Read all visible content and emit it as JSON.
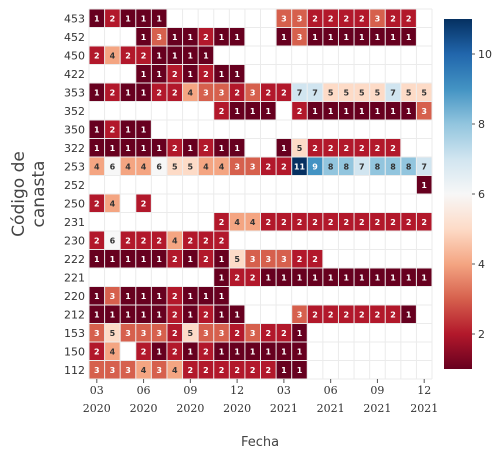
{
  "chart_data": {
    "type": "heatmap",
    "xlabel": "Fecha",
    "ylabel": "Código de canasta",
    "x": [
      "2020-03",
      "2020-04",
      "2020-05",
      "2020-06",
      "2020-07",
      "2020-08",
      "2020-09",
      "2020-10",
      "2020-11",
      "2020-12",
      "2021-01",
      "2021-02",
      "2021-03",
      "2021-04",
      "2021-05",
      "2021-06",
      "2021-07",
      "2021-08",
      "2021-09",
      "2021-10",
      "2021-11",
      "2021-12"
    ],
    "x_tick_labels": [
      {
        "x": "2020-03",
        "month": "03",
        "year": "2020"
      },
      {
        "x": "2020-06",
        "month": "06",
        "year": "2020"
      },
      {
        "x": "2020-09",
        "month": "09",
        "year": "2020"
      },
      {
        "x": "2020-12",
        "month": "12",
        "year": "2020"
      },
      {
        "x": "2021-03",
        "month": "03",
        "year": "2021"
      },
      {
        "x": "2021-06",
        "month": "06",
        "year": "2021"
      },
      {
        "x": "2021-09",
        "month": "09",
        "year": "2021"
      },
      {
        "x": "2021-12",
        "month": "12",
        "year": "2021"
      }
    ],
    "y": [
      "453",
      "452",
      "450",
      "422",
      "353",
      "352",
      "350",
      "322",
      "253",
      "252",
      "250",
      "231",
      "230",
      "222",
      "221",
      "220",
      "212",
      "153",
      "150",
      "112"
    ],
    "z": [
      [
        1,
        2,
        1,
        1,
        1,
        null,
        null,
        null,
        null,
        null,
        null,
        null,
        3,
        3,
        2,
        2,
        2,
        2,
        3,
        2,
        2,
        null
      ],
      [
        null,
        null,
        null,
        1,
        3,
        1,
        1,
        2,
        1,
        1,
        null,
        null,
        1,
        3,
        1,
        1,
        1,
        1,
        1,
        1,
        1,
        null
      ],
      [
        2,
        4,
        2,
        2,
        1,
        1,
        1,
        1,
        null,
        null,
        null,
        null,
        null,
        null,
        null,
        null,
        null,
        null,
        null,
        null,
        null,
        null
      ],
      [
        null,
        null,
        null,
        1,
        1,
        2,
        1,
        2,
        1,
        1,
        null,
        null,
        null,
        null,
        null,
        null,
        null,
        null,
        null,
        null,
        null,
        null
      ],
      [
        1,
        2,
        1,
        1,
        2,
        2,
        4,
        3,
        3,
        2,
        3,
        2,
        2,
        7,
        7,
        5,
        5,
        5,
        5,
        7,
        5,
        5
      ],
      [
        null,
        null,
        null,
        null,
        null,
        null,
        null,
        null,
        2,
        1,
        1,
        1,
        null,
        2,
        1,
        1,
        1,
        1,
        1,
        1,
        1,
        3
      ],
      [
        1,
        2,
        1,
        1,
        null,
        null,
        null,
        null,
        null,
        null,
        null,
        null,
        null,
        null,
        null,
        null,
        null,
        null,
        null,
        null,
        null,
        null
      ],
      [
        1,
        1,
        1,
        1,
        1,
        2,
        1,
        2,
        1,
        1,
        null,
        null,
        1,
        5,
        2,
        2,
        2,
        2,
        2,
        2,
        null,
        null
      ],
      [
        4,
        6,
        4,
        4,
        6,
        5,
        5,
        4,
        4,
        3,
        3,
        2,
        2,
        11,
        9,
        8,
        8,
        7,
        8,
        8,
        8,
        7
      ],
      [
        null,
        null,
        null,
        null,
        null,
        null,
        null,
        null,
        null,
        null,
        null,
        null,
        null,
        null,
        null,
        null,
        null,
        null,
        null,
        null,
        null,
        1
      ],
      [
        2,
        4,
        null,
        2,
        null,
        null,
        null,
        null,
        null,
        null,
        null,
        null,
        null,
        null,
        null,
        null,
        null,
        null,
        null,
        null,
        null,
        null
      ],
      [
        null,
        null,
        null,
        null,
        null,
        null,
        null,
        null,
        2,
        4,
        4,
        2,
        2,
        2,
        2,
        2,
        2,
        2,
        2,
        2,
        2,
        2
      ],
      [
        2,
        6,
        2,
        2,
        2,
        4,
        2,
        2,
        2,
        null,
        null,
        null,
        null,
        null,
        null,
        null,
        null,
        null,
        null,
        null,
        null,
        null
      ],
      [
        1,
        1,
        1,
        1,
        1,
        2,
        1,
        2,
        1,
        5,
        3,
        3,
        3,
        2,
        2,
        null,
        null,
        null,
        null,
        null,
        null,
        null
      ],
      [
        null,
        null,
        null,
        null,
        null,
        null,
        null,
        null,
        1,
        2,
        2,
        1,
        1,
        1,
        1,
        1,
        1,
        1,
        1,
        1,
        1,
        1
      ],
      [
        1,
        3,
        1,
        1,
        1,
        2,
        1,
        1,
        1,
        null,
        null,
        null,
        null,
        null,
        null,
        null,
        null,
        null,
        null,
        null,
        null,
        null
      ],
      [
        1,
        1,
        1,
        1,
        1,
        2,
        1,
        2,
        1,
        1,
        null,
        null,
        null,
        3,
        2,
        2,
        2,
        2,
        2,
        2,
        1,
        null
      ],
      [
        3,
        5,
        3,
        3,
        3,
        2,
        5,
        3,
        3,
        2,
        3,
        2,
        2,
        1,
        null,
        null,
        null,
        null,
        null,
        null,
        null,
        null
      ],
      [
        2,
        4,
        null,
        2,
        1,
        2,
        1,
        2,
        1,
        1,
        1,
        1,
        1,
        1,
        null,
        null,
        null,
        null,
        null,
        null,
        null,
        null
      ],
      [
        3,
        3,
        3,
        4,
        3,
        4,
        2,
        2,
        2,
        2,
        2,
        2,
        1,
        1,
        null,
        null,
        null,
        null,
        null,
        null,
        null,
        null
      ]
    ],
    "colorscale": [
      "#67001f",
      "#b2182b",
      "#d6604d",
      "#f4a582",
      "#fddbc7",
      "#f7f7f7",
      "#d1e5f0",
      "#92c5de",
      "#4393c3",
      "#2166ac",
      "#053061"
    ],
    "zmin": 1,
    "zmax": 11,
    "colorbar_ticks": [
      2,
      4,
      6,
      8,
      10
    ],
    "grid": true,
    "colorbar": "right"
  }
}
